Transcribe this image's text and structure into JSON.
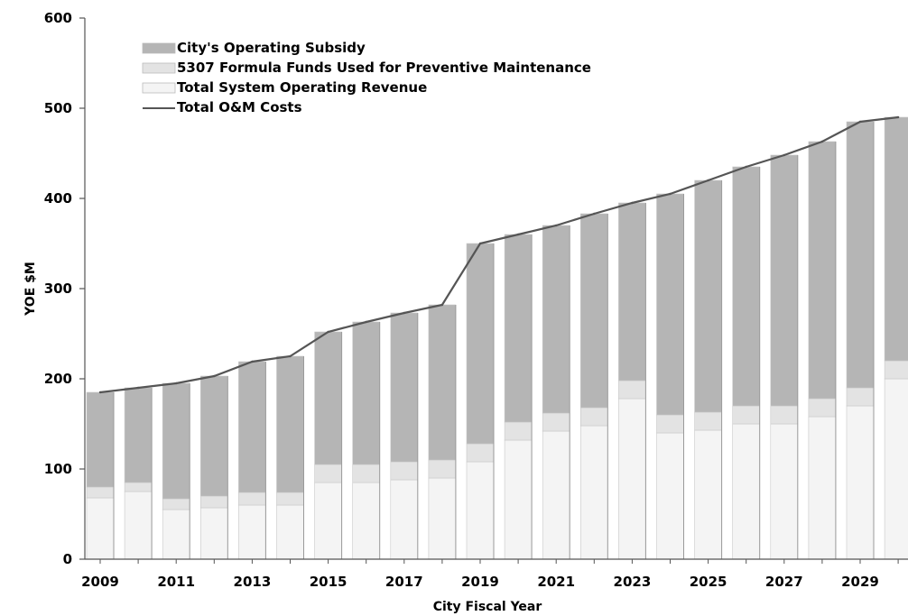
{
  "chart_data": {
    "type": "bar",
    "stacked": true,
    "xlabel": "City Fiscal Year",
    "ylabel": "YOE $M",
    "ylim": [
      0,
      600
    ],
    "yticks": [
      0,
      100,
      200,
      300,
      400,
      500,
      600
    ],
    "categories": [
      "2009",
      "2010",
      "2011",
      "2012",
      "2013",
      "2014",
      "2015",
      "2016",
      "2017",
      "2018",
      "2019",
      "2020",
      "2021",
      "2022",
      "2023",
      "2024",
      "2025",
      "2026",
      "2027",
      "2028",
      "2029",
      "2030"
    ],
    "xtick_labels": [
      "2009",
      "2011",
      "2013",
      "2015",
      "2017",
      "2019",
      "2021",
      "2023",
      "2025",
      "2027",
      "2029"
    ],
    "legend_position": "top-left",
    "series": [
      {
        "name": "Total System Operating Revenue",
        "kind": "bar",
        "color": "#f4f4f4",
        "values": [
          68,
          75,
          55,
          57,
          60,
          60,
          85,
          85,
          88,
          90,
          108,
          132,
          142,
          148,
          178,
          140,
          143,
          150,
          150,
          158,
          170,
          200
        ]
      },
      {
        "name": "5307 Formula Funds Used for Preventive Maintenance",
        "kind": "bar",
        "color": "#e3e3e3",
        "values": [
          12,
          10,
          12,
          13,
          14,
          14,
          20,
          20,
          20,
          20,
          20,
          20,
          20,
          20,
          20,
          20,
          20,
          20,
          20,
          20,
          20,
          20
        ]
      },
      {
        "name": "City's Operating Subsidy",
        "kind": "bar",
        "color": "#b5b5b5",
        "values": [
          105,
          105,
          128,
          133,
          145,
          151,
          147,
          158,
          165,
          172,
          222,
          208,
          208,
          215,
          197,
          245,
          257,
          265,
          278,
          285,
          295,
          270
        ]
      },
      {
        "name": "Total O&M Costs",
        "kind": "line",
        "color": "#555555",
        "values": [
          185,
          190,
          195,
          203,
          219,
          225,
          252,
          263,
          273,
          282,
          350,
          360,
          370,
          383,
          395,
          405,
          420,
          435,
          448,
          463,
          485,
          490
        ]
      }
    ]
  }
}
